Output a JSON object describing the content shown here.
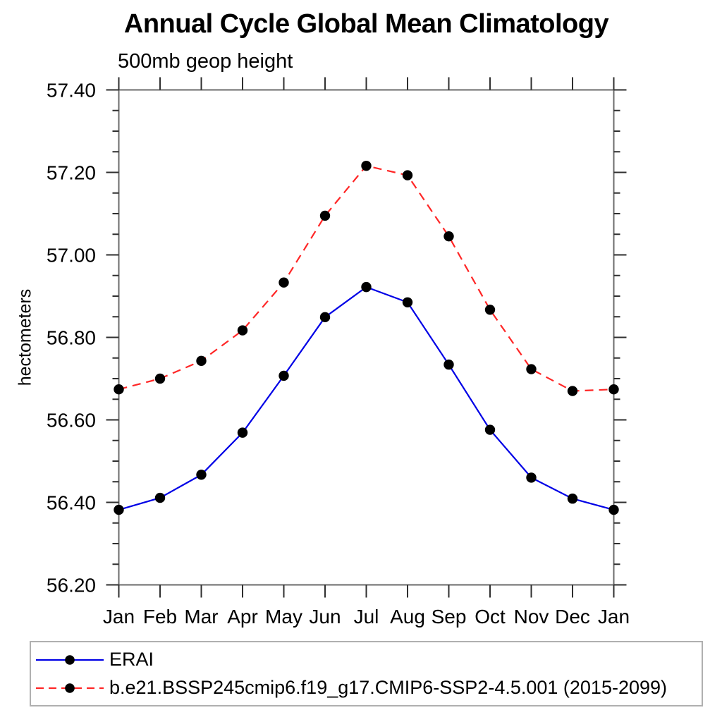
{
  "chart_data": {
    "type": "line",
    "title": "Annual Cycle Global Mean Climatology",
    "subtitle": "500mb geop height",
    "xlabel": "",
    "ylabel": "hectometers",
    "categories": [
      "Jan",
      "Feb",
      "Mar",
      "Apr",
      "May",
      "Jun",
      "Jul",
      "Aug",
      "Sep",
      "Oct",
      "Nov",
      "Dec",
      "Jan"
    ],
    "series": [
      {
        "name": "ERAI",
        "color": "#0000e6",
        "line_style": "solid",
        "marker": "filled-circle",
        "marker_color": "#000000",
        "values": [
          56.382,
          56.411,
          56.467,
          56.569,
          56.707,
          56.849,
          56.922,
          56.885,
          56.734,
          56.576,
          56.46,
          56.409,
          56.382
        ]
      },
      {
        "name": "b.e21.BSSP245cmip6.f19_g17.CMIP6-SSP2-4.5.001 (2015-2099)",
        "color": "#ff2626",
        "line_style": "dashed",
        "marker": "filled-circle",
        "marker_color": "#000000",
        "values": [
          56.674,
          56.7,
          56.743,
          56.817,
          56.933,
          57.095,
          57.216,
          57.193,
          57.045,
          56.867,
          56.723,
          56.67,
          56.674
        ]
      }
    ],
    "ylim": [
      56.2,
      57.4
    ],
    "ytick_major_step": 0.2,
    "ytick_minor_step": 0.05,
    "ytick_label_format": "2-decimals",
    "grid": false,
    "legend_position": "bottom-left-box",
    "axis_color": "#6b6b6b",
    "tick_color": "#2f2f2f",
    "text_color": "#000000"
  }
}
